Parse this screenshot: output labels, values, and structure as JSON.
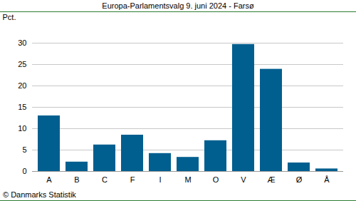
{
  "chart_data": {
    "type": "bar",
    "title": "Europa-Parlamentsvalg 9. juni 2024 - Farsø",
    "y_label": "Pct.",
    "caption": "© Danmarks Statistik",
    "categories": [
      "A",
      "B",
      "C",
      "F",
      "I",
      "M",
      "O",
      "V",
      "Æ",
      "Ø",
      "Å"
    ],
    "values": [
      13.0,
      2.2,
      6.2,
      8.5,
      4.2,
      3.3,
      7.2,
      29.7,
      23.9,
      2.0,
      0.6
    ],
    "color": "#005f8f",
    "ylim": [
      0,
      30
    ],
    "yticks": [
      0,
      5,
      10,
      15,
      20,
      25,
      30
    ],
    "grid": true
  }
}
